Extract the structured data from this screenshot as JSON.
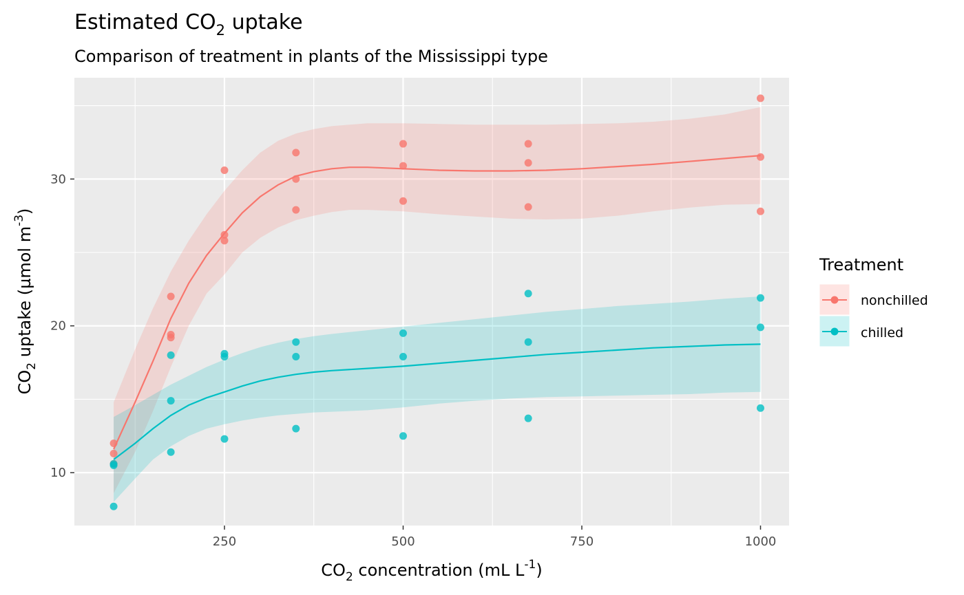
{
  "chart_data": {
    "type": "scatter",
    "title": {
      "prefix": "Estimated CO",
      "sub": "2",
      "suffix": " uptake"
    },
    "subtitle": "Comparison of treatment in plants of the Mississippi type",
    "xlabel": {
      "prefix": "CO",
      "sub": "2",
      "middle": " concentration (mL L",
      "sup": "-1",
      "suffix": ")"
    },
    "ylabel": {
      "prefix": "CO",
      "sub": "2",
      "middle": " uptake (µmol m",
      "sup": "-3",
      "suffix": ")"
    },
    "xlim": [
      40,
      1040
    ],
    "ylim": [
      6.4,
      36.9
    ],
    "x_ticks": [
      250,
      500,
      750,
      1000
    ],
    "x_minor_ticks": [
      125,
      375,
      625,
      875
    ],
    "y_ticks": [
      10,
      20,
      30
    ],
    "y_minor_ticks": [
      15,
      25,
      35
    ],
    "grid": true,
    "legend": {
      "title": "Treatment",
      "position": "right"
    },
    "series": [
      {
        "name": "nonchilled",
        "color": "#F8766D",
        "points": [
          [
            95,
            12.0
          ],
          [
            95,
            11.3
          ],
          [
            95,
            10.6
          ],
          [
            175,
            22.0
          ],
          [
            175,
            19.4
          ],
          [
            175,
            19.2
          ],
          [
            250,
            30.6
          ],
          [
            250,
            26.2
          ],
          [
            250,
            25.8
          ],
          [
            350,
            31.8
          ],
          [
            350,
            30.0
          ],
          [
            350,
            27.9
          ],
          [
            500,
            32.4
          ],
          [
            500,
            30.9
          ],
          [
            500,
            28.5
          ],
          [
            675,
            32.4
          ],
          [
            675,
            31.1
          ],
          [
            675,
            28.1
          ],
          [
            1000,
            35.5
          ],
          [
            1000,
            31.5
          ],
          [
            1000,
            27.8
          ]
        ],
        "smooth": [
          [
            95,
            11.6
          ],
          [
            125,
            14.8
          ],
          [
            150,
            17.6
          ],
          [
            175,
            20.5
          ],
          [
            200,
            22.9
          ],
          [
            225,
            24.8
          ],
          [
            250,
            26.3
          ],
          [
            275,
            27.7
          ],
          [
            300,
            28.8
          ],
          [
            325,
            29.6
          ],
          [
            350,
            30.2
          ],
          [
            375,
            30.5
          ],
          [
            400,
            30.7
          ],
          [
            425,
            30.8
          ],
          [
            450,
            30.8
          ],
          [
            500,
            30.7
          ],
          [
            550,
            30.6
          ],
          [
            600,
            30.55
          ],
          [
            650,
            30.55
          ],
          [
            700,
            30.6
          ],
          [
            750,
            30.7
          ],
          [
            800,
            30.85
          ],
          [
            850,
            31.0
          ],
          [
            900,
            31.2
          ],
          [
            950,
            31.4
          ],
          [
            1000,
            31.6
          ]
        ],
        "band_upper": [
          [
            95,
            14.8
          ],
          [
            125,
            18.4
          ],
          [
            150,
            21.2
          ],
          [
            175,
            23.7
          ],
          [
            200,
            25.8
          ],
          [
            225,
            27.6
          ],
          [
            250,
            29.2
          ],
          [
            275,
            30.6
          ],
          [
            300,
            31.8
          ],
          [
            325,
            32.6
          ],
          [
            350,
            33.1
          ],
          [
            375,
            33.4
          ],
          [
            400,
            33.6
          ],
          [
            425,
            33.7
          ],
          [
            450,
            33.8
          ],
          [
            500,
            33.8
          ],
          [
            550,
            33.75
          ],
          [
            600,
            33.7
          ],
          [
            650,
            33.7
          ],
          [
            700,
            33.7
          ],
          [
            750,
            33.75
          ],
          [
            800,
            33.8
          ],
          [
            850,
            33.9
          ],
          [
            900,
            34.1
          ],
          [
            950,
            34.4
          ],
          [
            1000,
            34.9
          ]
        ],
        "band_lower": [
          [
            95,
            8.6
          ],
          [
            125,
            11.4
          ],
          [
            150,
            14.2
          ],
          [
            175,
            17.2
          ],
          [
            200,
            20.0
          ],
          [
            225,
            22.2
          ],
          [
            250,
            23.5
          ],
          [
            275,
            25.0
          ],
          [
            300,
            26.0
          ],
          [
            325,
            26.7
          ],
          [
            350,
            27.2
          ],
          [
            375,
            27.5
          ],
          [
            400,
            27.75
          ],
          [
            425,
            27.9
          ],
          [
            450,
            27.9
          ],
          [
            500,
            27.8
          ],
          [
            550,
            27.6
          ],
          [
            600,
            27.45
          ],
          [
            650,
            27.3
          ],
          [
            700,
            27.25
          ],
          [
            750,
            27.3
          ],
          [
            800,
            27.5
          ],
          [
            850,
            27.8
          ],
          [
            900,
            28.05
          ],
          [
            950,
            28.25
          ],
          [
            1000,
            28.3
          ]
        ]
      },
      {
        "name": "chilled",
        "color": "#00BFC4",
        "points": [
          [
            95,
            10.6
          ],
          [
            95,
            10.5
          ],
          [
            95,
            7.7
          ],
          [
            175,
            18.0
          ],
          [
            175,
            14.9
          ],
          [
            175,
            11.4
          ],
          [
            250,
            18.1
          ],
          [
            250,
            17.9
          ],
          [
            250,
            12.3
          ],
          [
            350,
            18.9
          ],
          [
            350,
            17.9
          ],
          [
            350,
            13.0
          ],
          [
            500,
            19.5
          ],
          [
            500,
            17.9
          ],
          [
            500,
            12.5
          ],
          [
            675,
            22.2
          ],
          [
            675,
            18.9
          ],
          [
            675,
            13.7
          ],
          [
            1000,
            21.9
          ],
          [
            1000,
            19.9
          ],
          [
            1000,
            14.4
          ]
        ],
        "smooth": [
          [
            95,
            10.9
          ],
          [
            125,
            12.0
          ],
          [
            150,
            13.0
          ],
          [
            175,
            13.9
          ],
          [
            200,
            14.6
          ],
          [
            225,
            15.1
          ],
          [
            250,
            15.5
          ],
          [
            275,
            15.9
          ],
          [
            300,
            16.25
          ],
          [
            325,
            16.5
          ],
          [
            350,
            16.7
          ],
          [
            375,
            16.85
          ],
          [
            400,
            16.95
          ],
          [
            450,
            17.1
          ],
          [
            500,
            17.25
          ],
          [
            550,
            17.45
          ],
          [
            600,
            17.65
          ],
          [
            650,
            17.85
          ],
          [
            700,
            18.05
          ],
          [
            750,
            18.2
          ],
          [
            800,
            18.35
          ],
          [
            850,
            18.5
          ],
          [
            900,
            18.6
          ],
          [
            950,
            18.7
          ],
          [
            1000,
            18.75
          ]
        ],
        "band_upper": [
          [
            95,
            13.8
          ],
          [
            125,
            14.6
          ],
          [
            150,
            15.3
          ],
          [
            175,
            16.0
          ],
          [
            200,
            16.6
          ],
          [
            225,
            17.2
          ],
          [
            250,
            17.7
          ],
          [
            275,
            18.15
          ],
          [
            300,
            18.55
          ],
          [
            325,
            18.85
          ],
          [
            350,
            19.1
          ],
          [
            375,
            19.3
          ],
          [
            400,
            19.45
          ],
          [
            450,
            19.7
          ],
          [
            500,
            19.95
          ],
          [
            550,
            20.2
          ],
          [
            600,
            20.45
          ],
          [
            650,
            20.7
          ],
          [
            700,
            20.95
          ],
          [
            750,
            21.15
          ],
          [
            800,
            21.35
          ],
          [
            850,
            21.5
          ],
          [
            900,
            21.65
          ],
          [
            950,
            21.85
          ],
          [
            1000,
            22.0
          ]
        ],
        "band_lower": [
          [
            95,
            8.0
          ],
          [
            125,
            9.6
          ],
          [
            150,
            10.9
          ],
          [
            175,
            11.8
          ],
          [
            200,
            12.5
          ],
          [
            225,
            13.0
          ],
          [
            250,
            13.3
          ],
          [
            275,
            13.55
          ],
          [
            300,
            13.75
          ],
          [
            325,
            13.9
          ],
          [
            350,
            14.0
          ],
          [
            375,
            14.1
          ],
          [
            400,
            14.15
          ],
          [
            450,
            14.25
          ],
          [
            500,
            14.45
          ],
          [
            550,
            14.7
          ],
          [
            600,
            14.9
          ],
          [
            650,
            15.05
          ],
          [
            700,
            15.15
          ],
          [
            750,
            15.2
          ],
          [
            800,
            15.25
          ],
          [
            850,
            15.3
          ],
          [
            900,
            15.35
          ],
          [
            950,
            15.45
          ],
          [
            1000,
            15.5
          ]
        ]
      }
    ]
  }
}
